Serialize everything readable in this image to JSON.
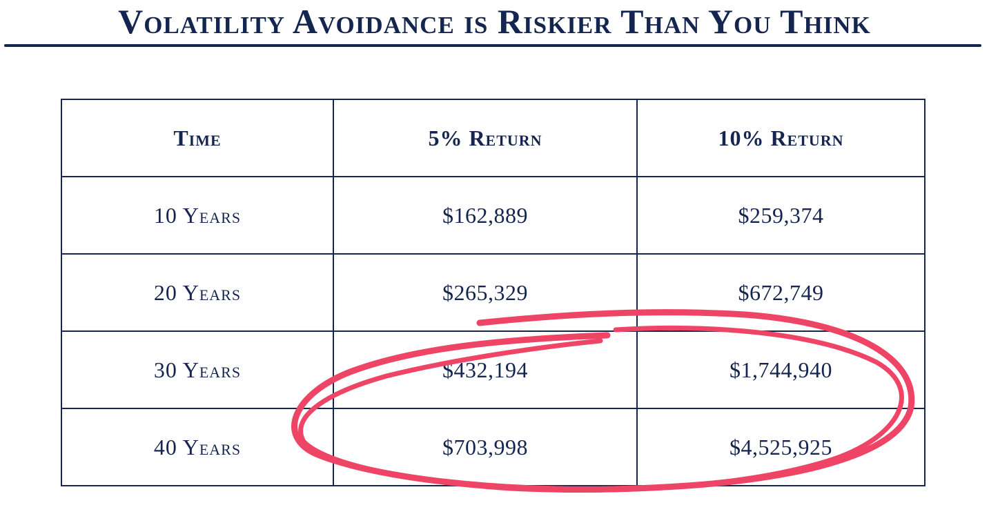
{
  "colors": {
    "ink": "#14254f",
    "highlight": "#ee4566",
    "background": "#ffffff"
  },
  "page": {
    "title": "Volatility Avoidance is Riskier Than You Think"
  },
  "chart_data": {
    "type": "table",
    "title": "Volatility Avoidance is Riskier Than You Think",
    "columns": [
      "Time",
      "5% Return",
      "10% Return"
    ],
    "rows": [
      {
        "time": "10 Years",
        "r5": "$162,889",
        "r10": "$259,374"
      },
      {
        "time": "20 Years",
        "r5": "$265,329",
        "r10": "$672,749"
      },
      {
        "time": "30 Years",
        "r5": "$432,194",
        "r10": "$1,744,940"
      },
      {
        "time": "40 Years",
        "r5": "$703,998",
        "r10": "$4,525,925"
      }
    ],
    "highlighted_rows": [
      "30 Years",
      "40 Years"
    ],
    "highlighted_columns": [
      "5% Return",
      "10% Return"
    ]
  }
}
